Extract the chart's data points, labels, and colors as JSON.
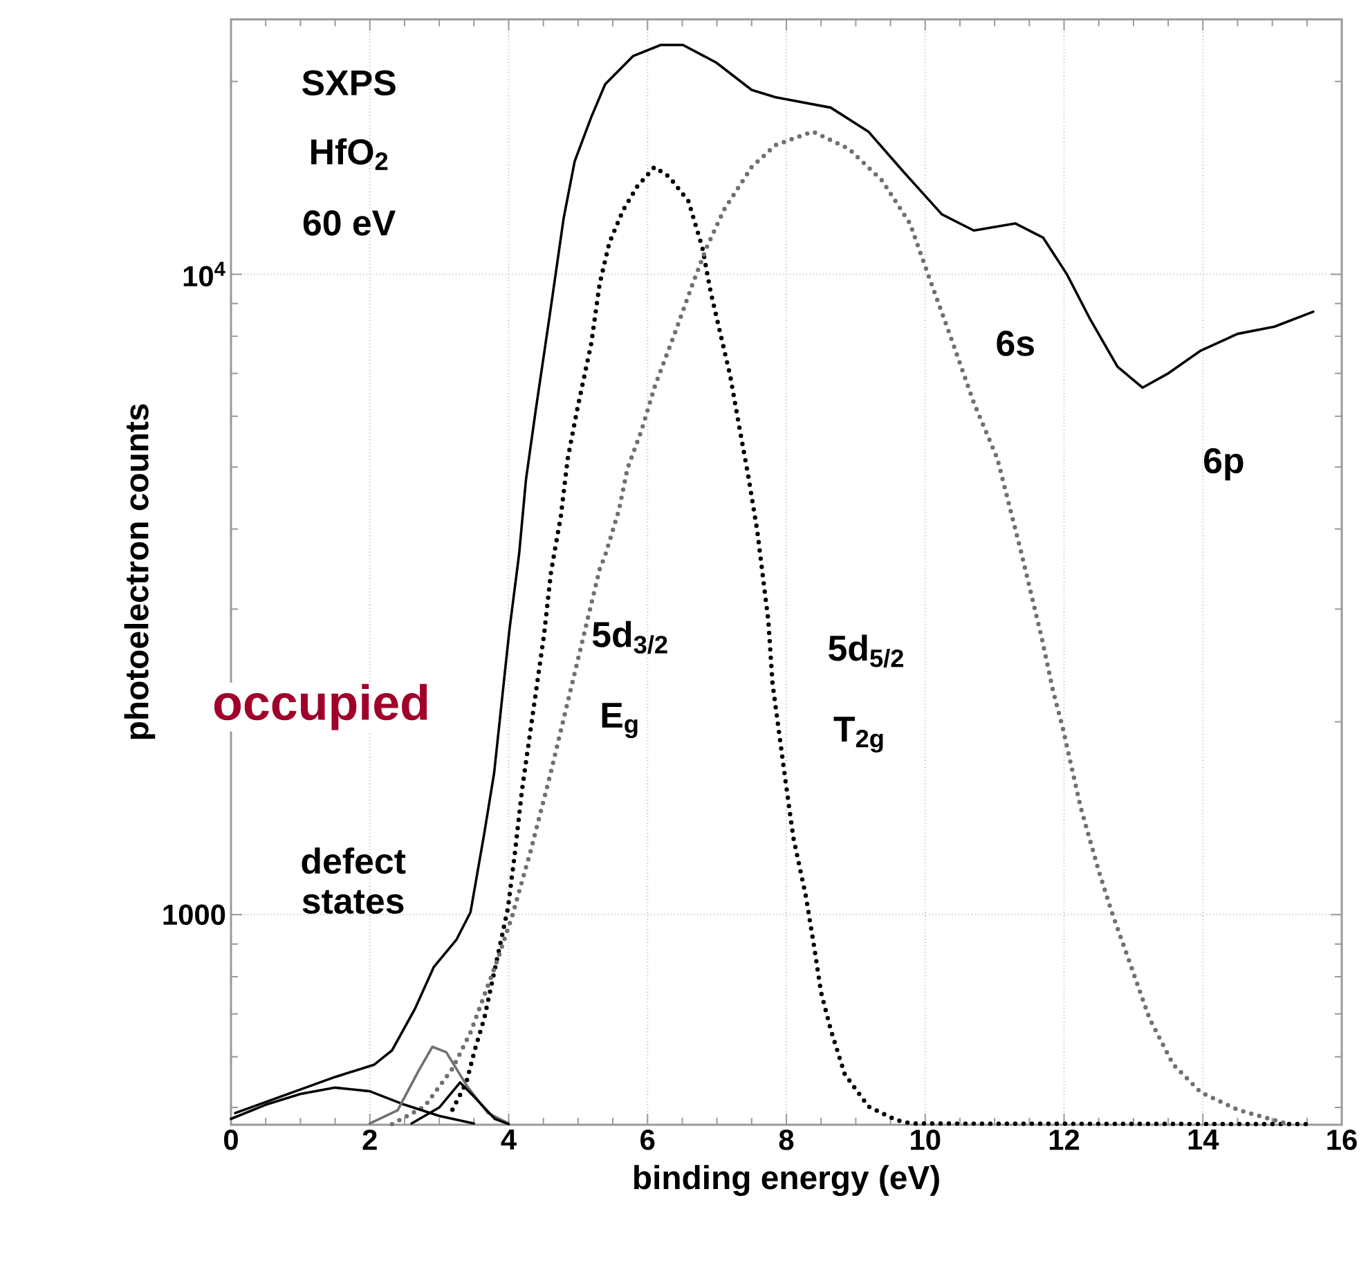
{
  "chart_data": {
    "type": "line",
    "xlabel": "binding energy (eV)",
    "ylabel": "photoelectron counts",
    "log": "y",
    "grid": true,
    "xlim": [
      0,
      16
    ],
    "ylim": [
      470,
      25000
    ],
    "xticks": [
      0,
      2,
      4,
      6,
      8,
      10,
      12,
      14,
      16
    ],
    "yticks": [
      1000,
      {
        "value": 10000,
        "label": "10$^{4}$"
      }
    ],
    "annotations": [
      "SXPS",
      "HfO$_{2}$",
      "60 eV",
      "6s",
      "6p",
      "5d$_{3/2}$",
      "E$_{g}$",
      "5d$_{5/2}$",
      "T$_{2g}$",
      "occupied",
      "defect states"
    ],
    "series": [
      {
        "color": "#000000",
        "line_style": "solid",
        "x": [
          0.06,
          1.5,
          2.06,
          2.32,
          2.65,
          2.92,
          3.25,
          3.45,
          3.65,
          3.79,
          4.01,
          4.15,
          4.25,
          4.39,
          4.59,
          4.79,
          4.95,
          5.19,
          5.39,
          5.79,
          6.19,
          6.51,
          6.99,
          7.5,
          7.84,
          8.64,
          9.18,
          9.7,
          10.24,
          10.7,
          11.3,
          11.7,
          12.04,
          12.38,
          12.77,
          13.13,
          13.49,
          13.97,
          14.5,
          15.03,
          15.59
        ],
        "values": [
          490,
          558,
          583,
          614,
          713,
          828,
          915,
          1009,
          1343,
          1664,
          2780,
          3656,
          4790,
          6140,
          8610,
          12200,
          15000,
          17600,
          19800,
          21900,
          22800,
          22800,
          21400,
          19400,
          18900,
          18200,
          16700,
          14400,
          12400,
          11700,
          12000,
          11400,
          10000,
          8490,
          7170,
          6650,
          6990,
          7600,
          8070,
          8280,
          8740
        ]
      },
      {
        "color": "#000000",
        "line_style": "dotted",
        "x": [
          3.19,
          3.39,
          3.51,
          3.65,
          3.99,
          4.09,
          4.19,
          4.51,
          4.61,
          4.75,
          4.85,
          4.99,
          5.19,
          5.31,
          5.45,
          5.65,
          5.85,
          6.1,
          6.31,
          6.59,
          6.79,
          6.91,
          7.05,
          7.19,
          7.31,
          7.45,
          7.58,
          7.74,
          7.8,
          7.98,
          8.1,
          8.28,
          8.4,
          8.5,
          8.64,
          8.84,
          9.18,
          9.58,
          9.8,
          15.6
        ],
        "values": [
          496,
          547,
          614,
          690,
          1025,
          1250,
          1560,
          2740,
          3430,
          4180,
          5150,
          6170,
          7800,
          9660,
          11200,
          12600,
          13700,
          14700,
          14200,
          13000,
          11000,
          9380,
          8070,
          6950,
          5870,
          4850,
          3980,
          2880,
          2300,
          1640,
          1320,
          1070,
          891,
          756,
          661,
          564,
          502,
          478,
          472,
          471
        ]
      },
      {
        "color": "#707070",
        "line_style": "dotted",
        "x": [
          2.32,
          2.79,
          3.19,
          3.45,
          3.65,
          3.85,
          4.05,
          4.31,
          4.59,
          5.31,
          5.39,
          5.59,
          5.71,
          5.91,
          6.11,
          6.39,
          6.65,
          6.85,
          7.1,
          7.5,
          7.84,
          8.38,
          8.9,
          9.38,
          9.78,
          10.04,
          10.38,
          10.7,
          11.04,
          11.38,
          11.68,
          11.84,
          11.98,
          12.24,
          12.5,
          12.7,
          12.97,
          13.23,
          13.57,
          13.97,
          14.5,
          15.17
        ],
        "values": [
          471,
          502,
          575,
          655,
          749,
          857,
          995,
          1250,
          1640,
          3460,
          3640,
          4290,
          4970,
          5690,
          6710,
          8070,
          9660,
          11000,
          12600,
          14700,
          15900,
          16700,
          15700,
          14000,
          12000,
          10000,
          7910,
          6300,
          5150,
          3690,
          2700,
          2240,
          1960,
          1470,
          1170,
          1000,
          828,
          689,
          584,
          528,
          496,
          473
        ]
      },
      {
        "color": "#000000",
        "line_style": "solid",
        "x": [
          0,
          0.5,
          1.0,
          1.5,
          2.0,
          2.5,
          3.0,
          3.5
        ],
        "values": [
          480,
          505,
          525,
          537,
          530,
          505,
          485,
          472
        ]
      },
      {
        "color": "#707070",
        "line_style": "solid",
        "x": [
          2.0,
          2.4,
          2.7,
          2.9,
          3.1,
          3.4,
          3.7,
          4.0
        ],
        "values": [
          472,
          495,
          570,
          622,
          610,
          540,
          490,
          472
        ]
      },
      {
        "color": "#000000",
        "line_style": "solid",
        "x": [
          2.6,
          3.0,
          3.3,
          3.5,
          3.8,
          4.0
        ],
        "values": [
          472,
          500,
          547,
          520,
          480,
          471
        ]
      }
    ]
  }
}
